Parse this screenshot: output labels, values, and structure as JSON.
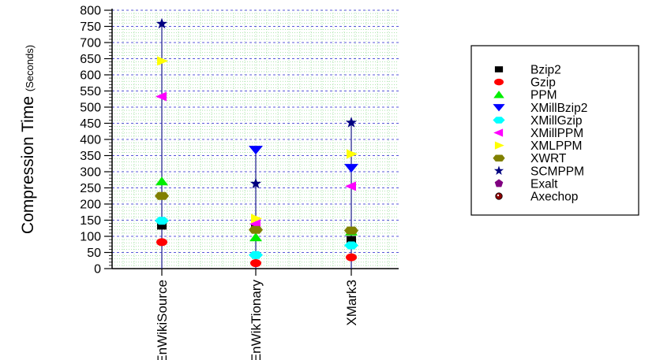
{
  "chart_data": {
    "type": "scatter",
    "ylabel": "Compression Time",
    "ylabel_unit": "(Seconds)",
    "ylim": [
      0,
      800
    ],
    "yticks": [
      "0",
      "50",
      "100",
      "150",
      "200",
      "250",
      "300",
      "350",
      "400",
      "450",
      "500",
      "550",
      "600",
      "650",
      "700",
      "750",
      "800"
    ],
    "categories": [
      "EnWikiSource",
      "EnWikTionary",
      "XMark3"
    ],
    "legend_position": "right",
    "grid": true,
    "series": [
      {
        "name": "Bzip2",
        "marker": "square",
        "color": "#000000",
        "values": [
          132,
          125,
          90
        ]
      },
      {
        "name": "Gzip",
        "marker": "ellipse",
        "color": "#ff0000",
        "values": [
          82,
          17,
          35
        ]
      },
      {
        "name": "PPM",
        "marker": "triangle-up",
        "color": "#00ee00",
        "values": [
          270,
          97,
          115
        ]
      },
      {
        "name": "XMillBzip2",
        "marker": "triangle-down",
        "color": "#0000ff",
        "values": [
          null,
          368,
          312
        ]
      },
      {
        "name": "XMillGzip",
        "marker": "diamond",
        "color": "#00ffff",
        "values": [
          148,
          42,
          72
        ]
      },
      {
        "name": "XMillPPM",
        "marker": "triangle-left",
        "color": "#ff00ff",
        "values": [
          533,
          138,
          255
        ]
      },
      {
        "name": "XMLPPM",
        "marker": "triangle-right",
        "color": "#ffff00",
        "values": [
          643,
          155,
          355
        ]
      },
      {
        "name": "XWRT",
        "marker": "hexagon",
        "color": "#808000",
        "values": [
          225,
          120,
          118
        ]
      },
      {
        "name": "SCMPPM",
        "marker": "star",
        "color": "#000080",
        "values": [
          758,
          263,
          452
        ]
      },
      {
        "name": "Exalt",
        "marker": "pentagon",
        "color": "#800080",
        "values": [
          null,
          null,
          null
        ]
      },
      {
        "name": "Axechop",
        "marker": "circle",
        "color": "#8b0000",
        "values": [
          null,
          null,
          null
        ]
      }
    ]
  }
}
